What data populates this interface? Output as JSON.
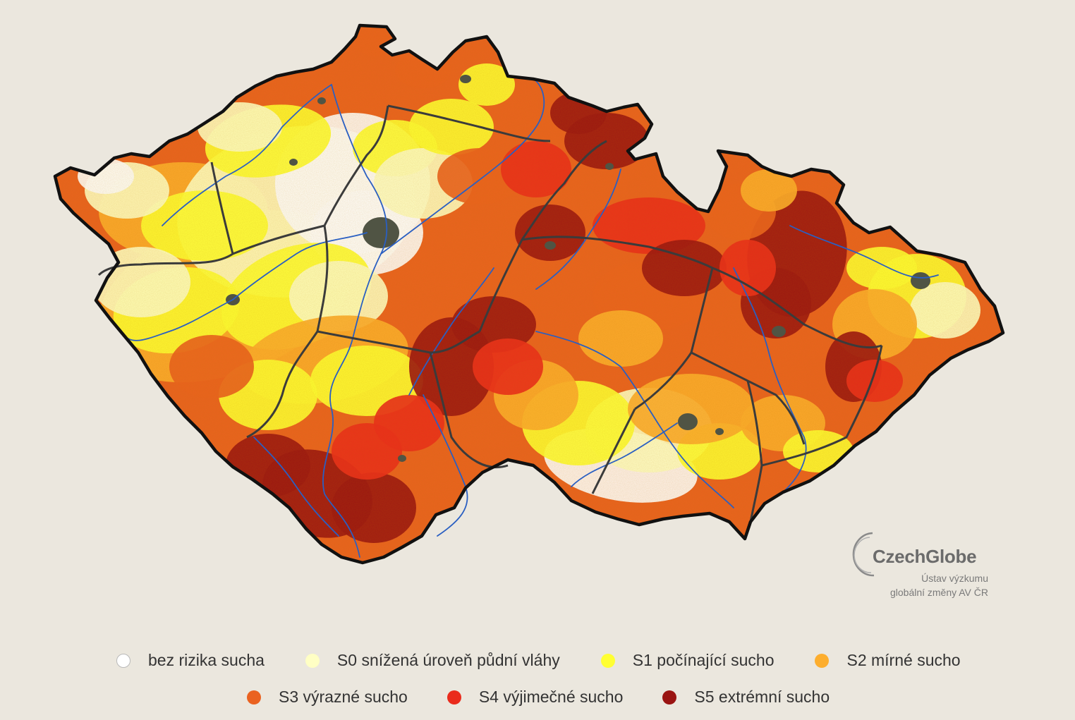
{
  "logo": {
    "name": "CzechGlobe",
    "subtitle_line1": "Ústav výzkumu",
    "subtitle_line2": "globální změny AV ČR"
  },
  "legend": {
    "items": [
      {
        "label": "bez rizika sucha",
        "color": "#ffffff"
      },
      {
        "label": "S0 snížená úroveň půdní vláhy",
        "color": "#ffffc4"
      },
      {
        "label": "S1 počínající sucho",
        "color": "#ffff33"
      },
      {
        "label": "S2 mírné sucho",
        "color": "#fdae2e"
      },
      {
        "label": "S3 výrazné sucho",
        "color": "#ea6220"
      },
      {
        "label": "S4 výjimečné sucho",
        "color": "#ea2b1c"
      },
      {
        "label": "S5 extrémní sucho",
        "color": "#9a1412"
      }
    ]
  },
  "colors": {
    "background": "#ebe7de",
    "border": "#111111",
    "region_border": "#3b3b3b",
    "river": "#2a5fc2",
    "urban": "#505444"
  }
}
